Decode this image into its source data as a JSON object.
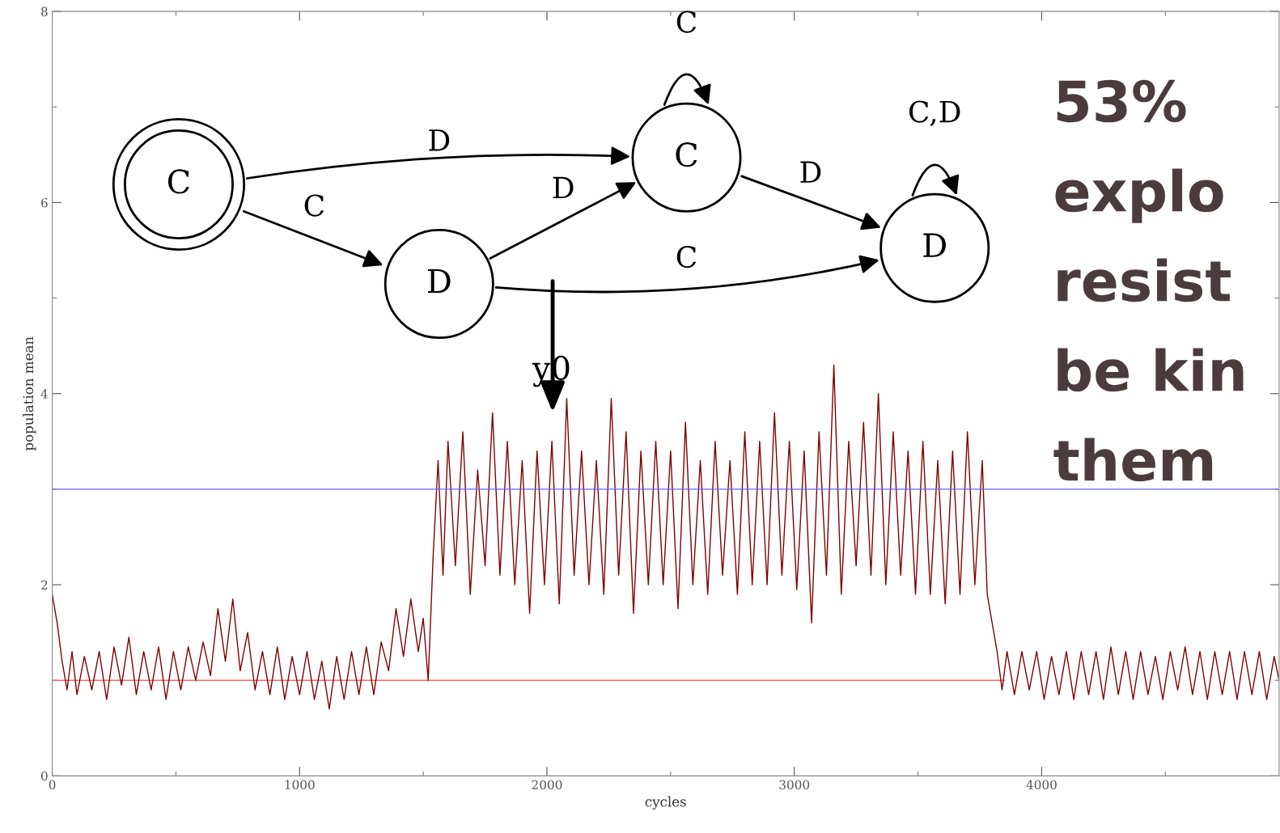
{
  "chart_data": {
    "type": "line",
    "xlabel": "cycles",
    "ylabel": "population mean",
    "xlim": [
      0,
      4960
    ],
    "ylim": [
      0,
      8
    ],
    "xticks": [
      0,
      1000,
      2000,
      3000,
      4000
    ],
    "yticks": [
      0,
      2,
      4,
      6,
      8
    ],
    "grid": false,
    "legend": false,
    "marker": "none",
    "line_style": "solid",
    "series": [
      {
        "color": "#ff6666",
        "x": [
          0,
          3850
        ],
        "values": [
          1,
          1
        ]
      },
      {
        "color": "#7f0000",
        "x": [
          0,
          20,
          40,
          60,
          80,
          100,
          130,
          160,
          190,
          220,
          250,
          280,
          310,
          340,
          370,
          400,
          430,
          460,
          490,
          520,
          550,
          580,
          610,
          640,
          670,
          700,
          730,
          760,
          790,
          820,
          850,
          880,
          910,
          940,
          970,
          1000,
          1030,
          1060,
          1090,
          1120,
          1150,
          1180,
          1210,
          1240,
          1270,
          1300,
          1330,
          1360,
          1390,
          1420,
          1450,
          1480,
          1500,
          1520,
          1540,
          1560,
          1580,
          1600,
          1630,
          1660,
          1690,
          1720,
          1750,
          1780,
          1810,
          1840,
          1870,
          1900,
          1930,
          1960,
          1990,
          2020,
          2050,
          2080,
          2110,
          2140,
          2170,
          2200,
          2230,
          2260,
          2290,
          2320,
          2350,
          2380,
          2410,
          2440,
          2470,
          2500,
          2530,
          2560,
          2590,
          2620,
          2650,
          2680,
          2710,
          2740,
          2770,
          2800,
          2830,
          2860,
          2890,
          2920,
          2950,
          2980,
          3010,
          3040,
          3070,
          3100,
          3130,
          3160,
          3190,
          3220,
          3250,
          3280,
          3310,
          3340,
          3370,
          3400,
          3430,
          3460,
          3490,
          3520,
          3550,
          3580,
          3610,
          3640,
          3670,
          3700,
          3730,
          3760,
          3780,
          3800,
          3820,
          3840,
          3860,
          3890,
          3920,
          3950,
          3980,
          4010,
          4040,
          4070,
          4100,
          4130,
          4160,
          4190,
          4220,
          4250,
          4280,
          4310,
          4340,
          4370,
          4400,
          4430,
          4460,
          4490,
          4520,
          4550,
          4580,
          4610,
          4640,
          4670,
          4700,
          4730,
          4760,
          4790,
          4820,
          4850,
          4880,
          4910,
          4940,
          4960
        ],
        "values": [
          1.9,
          1.6,
          1.2,
          0.9,
          1.3,
          0.85,
          1.25,
          0.9,
          1.3,
          0.8,
          1.35,
          0.95,
          1.45,
          0.85,
          1.3,
          0.9,
          1.35,
          0.8,
          1.3,
          0.9,
          1.35,
          1.0,
          1.4,
          1.05,
          1.75,
          1.2,
          1.85,
          1.1,
          1.5,
          0.9,
          1.3,
          0.85,
          1.35,
          0.8,
          1.25,
          0.85,
          1.3,
          0.8,
          1.2,
          0.7,
          1.25,
          0.8,
          1.3,
          0.85,
          1.35,
          0.85,
          1.4,
          1.1,
          1.75,
          1.25,
          1.85,
          1.3,
          1.65,
          1.0,
          2.3,
          3.3,
          2.1,
          3.5,
          2.2,
          3.6,
          1.9,
          3.2,
          2.2,
          3.8,
          2.1,
          3.5,
          2.0,
          3.3,
          1.7,
          3.4,
          2.0,
          3.5,
          1.8,
          3.95,
          2.1,
          3.4,
          2.0,
          3.3,
          1.9,
          3.95,
          2.1,
          3.6,
          1.7,
          3.4,
          2.0,
          3.5,
          2.0,
          3.4,
          1.75,
          3.7,
          2.0,
          3.3,
          1.9,
          3.5,
          2.1,
          3.3,
          1.9,
          3.6,
          2.0,
          3.5,
          2.0,
          3.8,
          2.1,
          3.5,
          1.95,
          3.4,
          1.6,
          3.6,
          2.1,
          4.3,
          1.9,
          3.5,
          2.2,
          3.7,
          2.1,
          4.0,
          2.0,
          3.6,
          2.1,
          3.4,
          1.9,
          3.5,
          1.9,
          3.3,
          1.8,
          3.4,
          1.9,
          3.6,
          2.0,
          3.3,
          1.9,
          1.6,
          1.3,
          0.9,
          1.3,
          0.85,
          1.3,
          0.9,
          1.3,
          0.8,
          1.25,
          0.85,
          1.3,
          0.8,
          1.3,
          0.85,
          1.3,
          0.8,
          1.35,
          0.85,
          1.3,
          0.8,
          1.3,
          0.85,
          1.25,
          0.8,
          1.3,
          0.9,
          1.35,
          0.85,
          1.3,
          0.8,
          1.3,
          0.85,
          1.3,
          0.8,
          1.3,
          0.85,
          1.3,
          0.8,
          1.25,
          1.0
        ]
      }
    ],
    "ref_lines": [
      {
        "axis": "y",
        "value": 3,
        "color": "#6666ff"
      }
    ],
    "annotations": [
      "C",
      "D",
      "C",
      "D",
      "D",
      "C",
      "D",
      "C",
      "D",
      "C",
      "C,D",
      "y0",
      "53%",
      "explo",
      "resist",
      "be kin",
      "them"
    ]
  }
}
